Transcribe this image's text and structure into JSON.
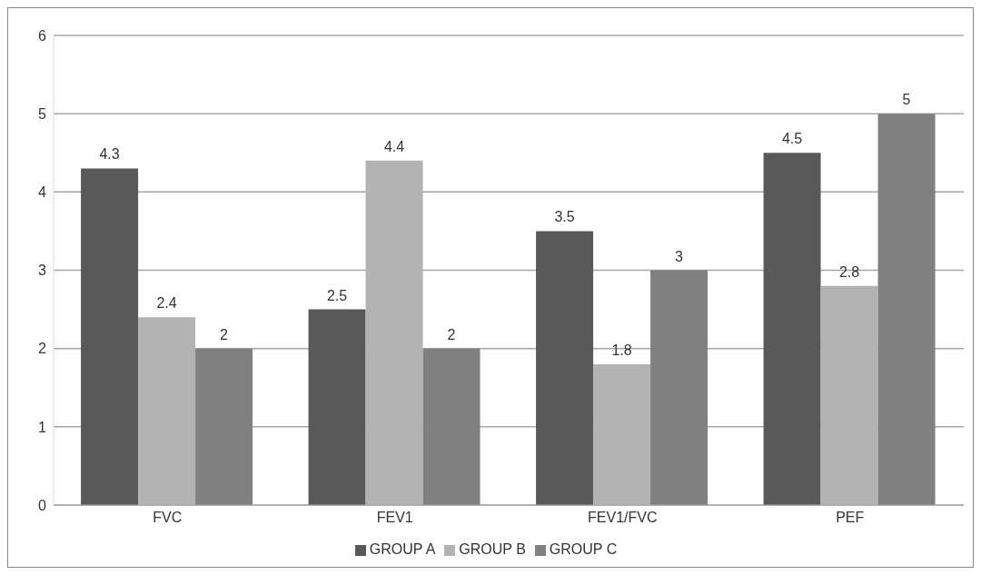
{
  "chart_data": {
    "type": "bar",
    "categories": [
      "FVC",
      "FEV1",
      "FEV1/FVC",
      "PEF"
    ],
    "series": [
      {
        "name": "GROUP A",
        "color": "#595959",
        "values": [
          4.3,
          2.5,
          3.5,
          4.5
        ]
      },
      {
        "name": "GROUP B",
        "color": "#b3b3b3",
        "values": [
          2.4,
          4.4,
          1.8,
          2.8
        ]
      },
      {
        "name": "GROUP C",
        "color": "#808080",
        "values": [
          2,
          2,
          3,
          5
        ]
      }
    ],
    "ylim": [
      0,
      6
    ],
    "yticks": [
      0,
      1,
      2,
      3,
      4,
      5,
      6
    ],
    "grid": "y",
    "legend": "bottom",
    "data_labels": true
  }
}
